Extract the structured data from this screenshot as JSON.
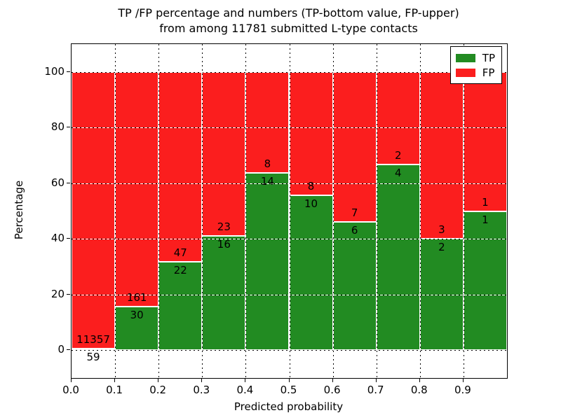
{
  "title": {
    "line1": "TP /FP percentage and numbers (TP-bottom value, FP-upper)",
    "line2": "from among 11781 submitted L-type contacts"
  },
  "axes": {
    "xlabel": "Predicted probability",
    "ylabel": "Percentage",
    "xtick_labels": [
      "0.0",
      "0.1",
      "0.2",
      "0.3",
      "0.4",
      "0.5",
      "0.6",
      "0.7",
      "0.8",
      "0.9"
    ],
    "ytick_labels": [
      "0",
      "20",
      "40",
      "60",
      "80",
      "100"
    ],
    "ytick_values": [
      0,
      20,
      40,
      60,
      80,
      100
    ],
    "xlim": [
      0.0,
      1.0
    ],
    "ylim": [
      -10,
      110
    ],
    "grid": "dotted"
  },
  "legend": {
    "position": "upper right",
    "items": [
      {
        "label": "TP",
        "color": "#228b22"
      },
      {
        "label": "FP",
        "color": "#fb1e1e"
      }
    ]
  },
  "colors": {
    "tp": "#228b22",
    "fp": "#fb1e1e",
    "bar_edge": "#ffffff",
    "grid": "#000000",
    "background": "#ffffff"
  },
  "chart_data": {
    "type": "bar",
    "stacked": true,
    "title": "TP /FP percentage and numbers (TP-bottom value, FP-upper) from among 11781 submitted L-type contacts",
    "xlabel": "Predicted probability",
    "ylabel": "Percentage",
    "xlim": [
      0.0,
      1.0
    ],
    "ylim": [
      -10,
      110
    ],
    "total_contacts": 11781,
    "bin_edges": [
      0.0,
      0.1,
      0.2,
      0.3,
      0.4,
      0.5,
      0.6,
      0.7,
      0.8,
      0.9,
      1.0
    ],
    "series": [
      {
        "name": "TP",
        "counts": [
          59,
          30,
          22,
          16,
          14,
          10,
          6,
          4,
          2,
          1
        ],
        "percent": [
          0.52,
          15.71,
          31.88,
          41.03,
          63.64,
          55.56,
          46.15,
          66.67,
          40.0,
          50.0
        ]
      },
      {
        "name": "FP",
        "counts": [
          11357,
          161,
          47,
          23,
          8,
          8,
          7,
          2,
          3,
          1
        ],
        "percent": [
          99.48,
          84.29,
          68.12,
          58.97,
          36.36,
          44.44,
          53.85,
          33.33,
          60.0,
          50.0
        ]
      }
    ]
  }
}
